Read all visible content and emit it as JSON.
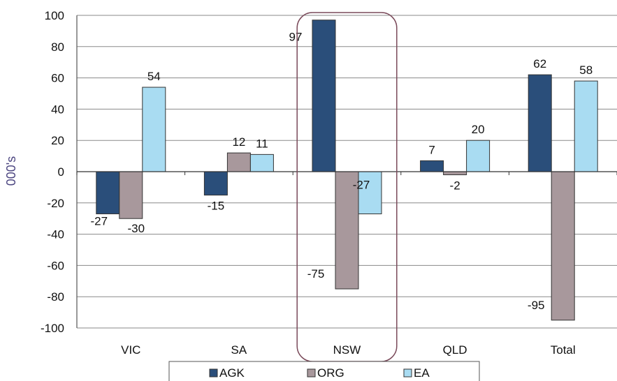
{
  "chart_data": {
    "type": "bar",
    "categories": [
      "VIC",
      "SA",
      "NSW",
      "QLD",
      "Total"
    ],
    "series": [
      {
        "name": "AGK",
        "values": [
          -27,
          -15,
          97,
          7,
          62
        ],
        "color": "#2a4e7a"
      },
      {
        "name": "ORG",
        "values": [
          -30,
          12,
          -75,
          -2,
          -95
        ],
        "color": "#a8989c"
      },
      {
        "name": "EA",
        "values": [
          54,
          11,
          -27,
          20,
          58
        ],
        "color": "#a9dcf2"
      }
    ],
    "data_labels": [
      [
        "-27",
        "-30",
        "54"
      ],
      [
        "-15",
        "12",
        "11"
      ],
      [
        "97",
        "-75",
        "-27"
      ],
      [
        "7",
        "-2",
        "20"
      ],
      [
        "62",
        "-95",
        "58"
      ]
    ],
    "yticks": [
      100,
      80,
      60,
      40,
      20,
      0,
      -20,
      -40,
      -60,
      -80,
      -100
    ],
    "ylim": [
      -100,
      100
    ],
    "ylabel": "000's",
    "xlabel": "",
    "title": "",
    "grid": true,
    "legend_position": "bottom",
    "highlight_category": "NSW"
  }
}
